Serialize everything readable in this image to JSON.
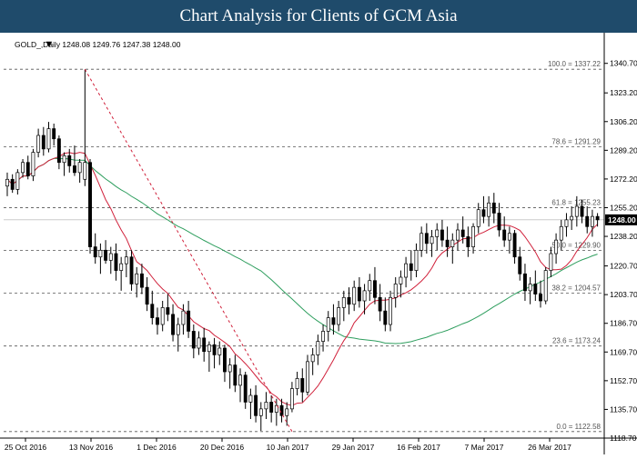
{
  "header": {
    "title": "Chart Analysis for Clients of GCM Asia"
  },
  "chart_data": {
    "type": "candlestick",
    "symbol_info": "GOLD_,Daily  1248.08 1249.76 1247.38 1248.00",
    "current_price": 1248.0,
    "current_price_label": "1248.00",
    "ylim": [
      1118.7,
      1347.0
    ],
    "y_ticks": [
      "1340.70",
      "1323.20",
      "1306.20",
      "1289.20",
      "1272.20",
      "1255.20",
      "1238.20",
      "1220.70",
      "1203.70",
      "1186.70",
      "1169.70",
      "1152.70",
      "1135.70",
      "1118.70"
    ],
    "x_ticks": [
      "25 Oct 2016",
      "13 Nov 2016",
      "1 Dec 2016",
      "20 Dec 2016",
      "10 Jan 2017",
      "29 Jan 2017",
      "16 Feb 2017",
      "7 Mar 2017",
      "26 Mar 2017"
    ],
    "fib_levels": [
      {
        "label": "100.0 = 1337.22",
        "value": 1337.22
      },
      {
        "label": "78.6 = 1291.29",
        "value": 1291.29
      },
      {
        "label": "61.8 = 1255.23",
        "value": 1255.23
      },
      {
        "label": "50.0 = 1229.90",
        "value": 1229.9
      },
      {
        "label": "38.2 = 1204.57",
        "value": 1204.57
      },
      {
        "label": "23.6 = 1173.24",
        "value": 1173.24
      },
      {
        "label": "0.0 = 1122.58",
        "value": 1122.58
      }
    ],
    "fib_trendline": {
      "from": {
        "bar": 15,
        "value": 1337.22
      },
      "to": {
        "bar": 55,
        "value": 1122.58
      }
    },
    "candles": [
      [
        1268,
        1276,
        1262,
        1272
      ],
      [
        1272,
        1275,
        1264,
        1266
      ],
      [
        1266,
        1278,
        1263,
        1276
      ],
      [
        1276,
        1284,
        1273,
        1282
      ],
      [
        1282,
        1286,
        1272,
        1274
      ],
      [
        1274,
        1290,
        1271,
        1288
      ],
      [
        1288,
        1302,
        1285,
        1298
      ],
      [
        1298,
        1303,
        1286,
        1290
      ],
      [
        1290,
        1306,
        1288,
        1302
      ],
      [
        1302,
        1305,
        1292,
        1296
      ],
      [
        1296,
        1298,
        1278,
        1282
      ],
      [
        1282,
        1288,
        1274,
        1286
      ],
      [
        1286,
        1290,
        1276,
        1280
      ],
      [
        1280,
        1292,
        1274,
        1276
      ],
      [
        1276,
        1284,
        1270,
        1282
      ],
      [
        1272,
        1337,
        1268,
        1282
      ],
      [
        1282,
        1284,
        1228,
        1232
      ],
      [
        1232,
        1240,
        1222,
        1226
      ],
      [
        1226,
        1234,
        1216,
        1230
      ],
      [
        1230,
        1236,
        1222,
        1224
      ],
      [
        1224,
        1232,
        1216,
        1228
      ],
      [
        1228,
        1234,
        1212,
        1218
      ],
      [
        1218,
        1226,
        1206,
        1222
      ],
      [
        1222,
        1230,
        1214,
        1226
      ],
      [
        1226,
        1230,
        1206,
        1210
      ],
      [
        1210,
        1220,
        1202,
        1216
      ],
      [
        1216,
        1222,
        1204,
        1208
      ],
      [
        1208,
        1214,
        1194,
        1198
      ],
      [
        1198,
        1206,
        1186,
        1190
      ],
      [
        1190,
        1196,
        1180,
        1186
      ],
      [
        1186,
        1200,
        1182,
        1196
      ],
      [
        1196,
        1204,
        1188,
        1192
      ],
      [
        1192,
        1198,
        1176,
        1180
      ],
      [
        1180,
        1190,
        1170,
        1186
      ],
      [
        1186,
        1198,
        1180,
        1194
      ],
      [
        1194,
        1200,
        1178,
        1182
      ],
      [
        1182,
        1186,
        1166,
        1172
      ],
      [
        1172,
        1182,
        1168,
        1178
      ],
      [
        1178,
        1184,
        1164,
        1170
      ],
      [
        1170,
        1176,
        1158,
        1174
      ],
      [
        1174,
        1178,
        1160,
        1168
      ],
      [
        1168,
        1176,
        1162,
        1172
      ],
      [
        1172,
        1174,
        1152,
        1158
      ],
      [
        1158,
        1166,
        1148,
        1162
      ],
      [
        1162,
        1168,
        1146,
        1150
      ],
      [
        1150,
        1160,
        1140,
        1156
      ],
      [
        1156,
        1158,
        1136,
        1140
      ],
      [
        1140,
        1148,
        1130,
        1144
      ],
      [
        1144,
        1150,
        1128,
        1132
      ],
      [
        1132,
        1140,
        1123,
        1136
      ],
      [
        1136,
        1146,
        1130,
        1140
      ],
      [
        1140,
        1144,
        1128,
        1134
      ],
      [
        1134,
        1142,
        1126,
        1138
      ],
      [
        1138,
        1142,
        1128,
        1132
      ],
      [
        1132,
        1140,
        1126,
        1136
      ],
      [
        1136,
        1152,
        1134,
        1148
      ],
      [
        1148,
        1158,
        1144,
        1154
      ],
      [
        1154,
        1160,
        1140,
        1146
      ],
      [
        1146,
        1168,
        1144,
        1164
      ],
      [
        1164,
        1172,
        1156,
        1168
      ],
      [
        1168,
        1180,
        1162,
        1176
      ],
      [
        1176,
        1186,
        1170,
        1182
      ],
      [
        1182,
        1194,
        1176,
        1190
      ],
      [
        1190,
        1198,
        1180,
        1186
      ],
      [
        1186,
        1200,
        1182,
        1196
      ],
      [
        1196,
        1206,
        1188,
        1202
      ],
      [
        1202,
        1208,
        1192,
        1198
      ],
      [
        1198,
        1212,
        1194,
        1208
      ],
      [
        1208,
        1214,
        1196,
        1200
      ],
      [
        1200,
        1210,
        1192,
        1206
      ],
      [
        1206,
        1216,
        1200,
        1212
      ],
      [
        1212,
        1220,
        1198,
        1202
      ],
      [
        1202,
        1210,
        1188,
        1194
      ],
      [
        1194,
        1202,
        1182,
        1186
      ],
      [
        1186,
        1206,
        1182,
        1202
      ],
      [
        1202,
        1214,
        1196,
        1210
      ],
      [
        1210,
        1218,
        1202,
        1214
      ],
      [
        1214,
        1226,
        1208,
        1222
      ],
      [
        1222,
        1230,
        1212,
        1218
      ],
      [
        1218,
        1234,
        1214,
        1230
      ],
      [
        1230,
        1244,
        1226,
        1240
      ],
      [
        1240,
        1246,
        1228,
        1234
      ],
      [
        1234,
        1242,
        1226,
        1238
      ],
      [
        1238,
        1246,
        1230,
        1242
      ],
      [
        1242,
        1248,
        1232,
        1236
      ],
      [
        1236,
        1244,
        1226,
        1232
      ],
      [
        1232,
        1240,
        1222,
        1236
      ],
      [
        1236,
        1246,
        1230,
        1242
      ],
      [
        1242,
        1250,
        1234,
        1238
      ],
      [
        1238,
        1244,
        1226,
        1232
      ],
      [
        1232,
        1246,
        1228,
        1244
      ],
      [
        1244,
        1258,
        1240,
        1254
      ],
      [
        1254,
        1262,
        1246,
        1250
      ],
      [
        1250,
        1262,
        1244,
        1258
      ],
      [
        1258,
        1264,
        1246,
        1252
      ],
      [
        1252,
        1258,
        1238,
        1242
      ],
      [
        1242,
        1250,
        1232,
        1236
      ],
      [
        1236,
        1244,
        1228,
        1240
      ],
      [
        1240,
        1242,
        1222,
        1226
      ],
      [
        1226,
        1232,
        1212,
        1216
      ],
      [
        1216,
        1222,
        1200,
        1206
      ],
      [
        1206,
        1214,
        1198,
        1210
      ],
      [
        1210,
        1218,
        1200,
        1204
      ],
      [
        1204,
        1212,
        1196,
        1200
      ],
      [
        1200,
        1220,
        1198,
        1218
      ],
      [
        1218,
        1232,
        1214,
        1228
      ],
      [
        1228,
        1240,
        1222,
        1236
      ],
      [
        1236,
        1248,
        1230,
        1244
      ],
      [
        1244,
        1252,
        1238,
        1248
      ],
      [
        1248,
        1256,
        1242,
        1250
      ],
      [
        1250,
        1262,
        1244,
        1256
      ],
      [
        1256,
        1260,
        1246,
        1250
      ],
      [
        1250,
        1256,
        1240,
        1244
      ],
      [
        1244,
        1254,
        1238,
        1250
      ],
      [
        1250,
        1252,
        1244,
        1248
      ]
    ]
  }
}
